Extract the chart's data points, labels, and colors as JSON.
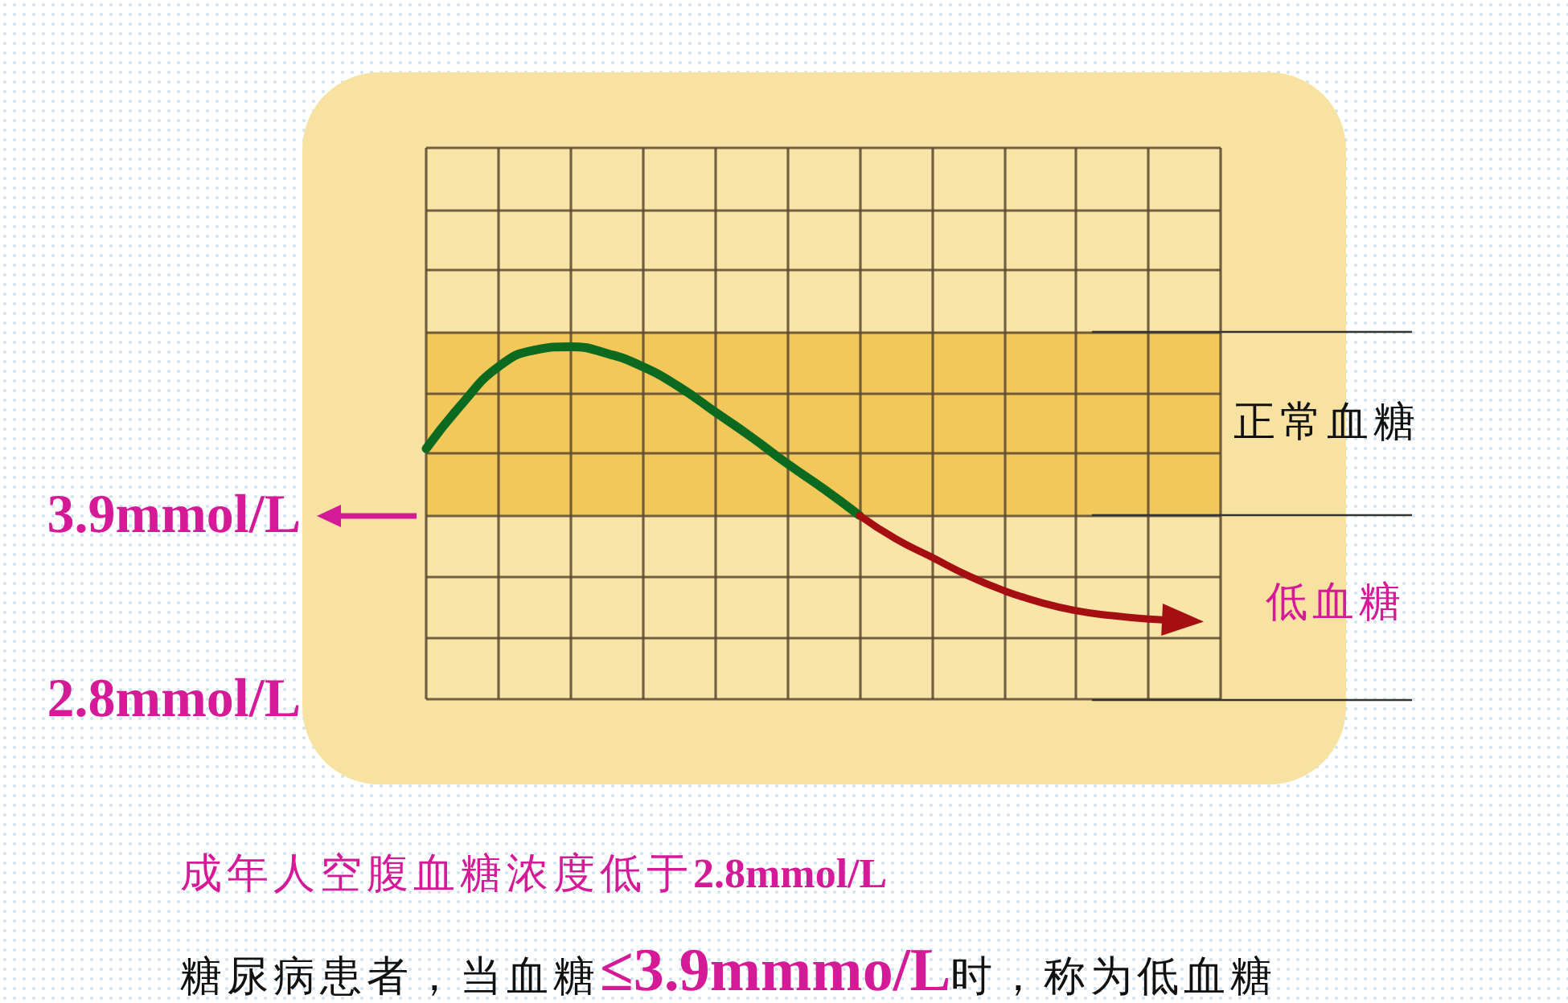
{
  "chart_data": {
    "type": "line",
    "categories": [
      null,
      null,
      null,
      null,
      null,
      null,
      null,
      null,
      null,
      null,
      null,
      null,
      null,
      null,
      null,
      null,
      null,
      null,
      null,
      null,
      null,
      null,
      null
    ],
    "series": [
      {
        "color": "#0b6a1f",
        "values": [
          4.3,
          4.57,
          4.79,
          4.89,
          4.91,
          4.87,
          4.79,
          4.67,
          4.52,
          4.37,
          4.21,
          4.06,
          3.9,
          null,
          null,
          null,
          null,
          null,
          null,
          null,
          null,
          null,
          null
        ]
      },
      {
        "color": "#a50f12",
        "values": [
          null,
          null,
          null,
          null,
          null,
          null,
          null,
          null,
          null,
          null,
          null,
          null,
          3.9,
          3.76,
          3.65,
          3.54,
          3.45,
          3.38,
          3.33,
          3.3,
          3.28,
          3.27,
          null
        ]
      }
    ],
    "ylim": [
      2.8,
      6.1
    ],
    "yticks": [
      {
        "value": 2.8,
        "label": "2.8mmol/L"
      },
      {
        "value": 3.17,
        "label": null
      },
      {
        "value": 3.53,
        "label": null
      },
      {
        "value": 3.9,
        "label": "3.9mmol/L"
      },
      {
        "value": 4.27,
        "label": null
      },
      {
        "value": 4.63,
        "label": null
      },
      {
        "value": 5.0,
        "label": null
      },
      {
        "value": 5.37,
        "label": null
      },
      {
        "value": 5.73,
        "label": null
      },
      {
        "value": 6.1,
        "label": null
      }
    ],
    "tick_labels": "y",
    "grid": true,
    "marker": "none",
    "line_style": "solid",
    "ref_lines": [
      {
        "axis": "y",
        "value": 5.0,
        "color": "#333333"
      },
      {
        "axis": "y",
        "value": 3.9,
        "color": "#333333"
      },
      {
        "axis": "y",
        "value": 2.8,
        "color": "#333333"
      }
    ],
    "bands": [
      {
        "axis": "y",
        "from": 3.9,
        "to": 5.0,
        "label": "正常血糖",
        "color": "#f2c85a"
      }
    ],
    "annotations": [
      "低血糖",
      "成年人空腹血糖浓度低于2.8mmol/L",
      "糖尿病患者，当血糖",
      "≤3.9mmmo/L",
      "时，称为低血糖"
    ]
  }
}
